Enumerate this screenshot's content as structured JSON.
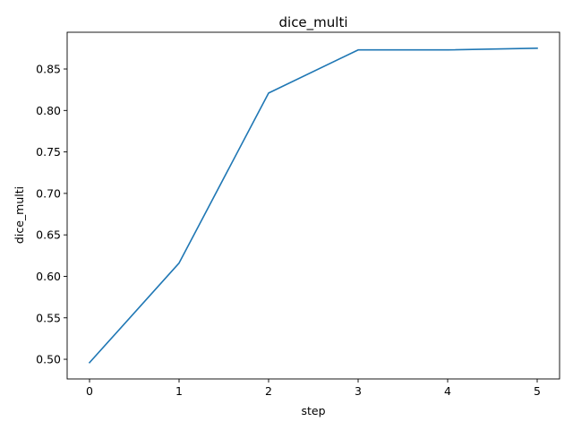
{
  "chart_data": {
    "type": "line",
    "title": "dice_multi",
    "xlabel": "step",
    "ylabel": "dice_multi",
    "xlim": [
      -0.25,
      5.25
    ],
    "ylim": [
      0.4763,
      0.8943
    ],
    "xticks": [
      "0",
      "1",
      "2",
      "3",
      "4",
      "5"
    ],
    "yticks": [
      "0.50",
      "0.55",
      "0.60",
      "0.65",
      "0.70",
      "0.75",
      "0.80",
      "0.85"
    ],
    "grid": false,
    "series": [
      {
        "color": "#1f77b4",
        "x": [
          0,
          1,
          2,
          3,
          4,
          5
        ],
        "y": [
          0.496,
          0.616,
          0.821,
          0.873,
          0.873,
          0.875
        ]
      }
    ]
  }
}
